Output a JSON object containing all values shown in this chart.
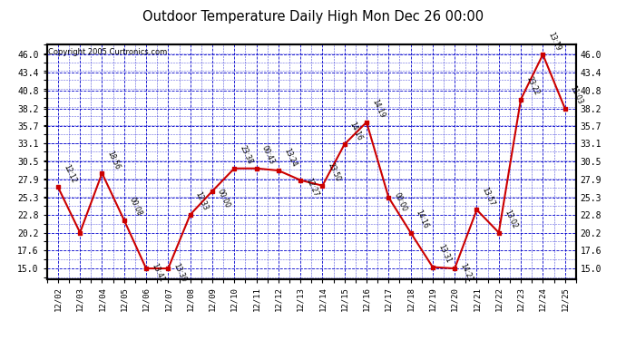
{
  "title": "Outdoor Temperature Daily High Mon Dec 26 00:00",
  "copyright": "Copyright 2005 Curtronics.com",
  "x_labels": [
    "12/02",
    "12/03",
    "12/04",
    "12/05",
    "12/06",
    "12/07",
    "12/08",
    "12/09",
    "12/10",
    "12/11",
    "12/12",
    "12/13",
    "12/14",
    "12/15",
    "12/16",
    "12/17",
    "12/18",
    "12/19",
    "12/20",
    "12/21",
    "12/22",
    "12/23",
    "12/24",
    "12/25"
  ],
  "y_values": [
    26.8,
    20.2,
    28.8,
    22.0,
    15.0,
    15.0,
    22.8,
    26.2,
    29.5,
    29.5,
    29.2,
    27.8,
    27.0,
    33.0,
    36.2,
    25.3,
    20.2,
    15.2,
    15.0,
    23.5,
    20.2,
    39.5,
    46.0,
    38.2
  ],
  "point_labels": [
    "12:12",
    "",
    "18:56",
    "00:08",
    "13:41",
    "13:39",
    "12:33",
    "00:00",
    "23:38",
    "00:43",
    "13:24",
    "12:27",
    "23:50",
    "14:16",
    "14:19",
    "00:00",
    "14:16",
    "13:31",
    "14:21",
    "13:57",
    "13:02",
    "23:22",
    "13:19",
    "11:03"
  ],
  "bg_color": "#ffffff",
  "plot_bg_color": "#ffffff",
  "line_color": "#cc0000",
  "marker_color": "#cc0000",
  "grid_color": "#0000cc",
  "border_color": "#000000",
  "title_color": "#000000",
  "copyright_color": "#000000",
  "ylabel_values": [
    15.0,
    17.6,
    20.2,
    22.8,
    25.3,
    27.9,
    30.5,
    33.1,
    35.7,
    38.2,
    40.8,
    43.4,
    46.0
  ],
  "ylim": [
    13.5,
    47.5
  ],
  "figsize": [
    6.9,
    3.75
  ],
  "dpi": 100
}
